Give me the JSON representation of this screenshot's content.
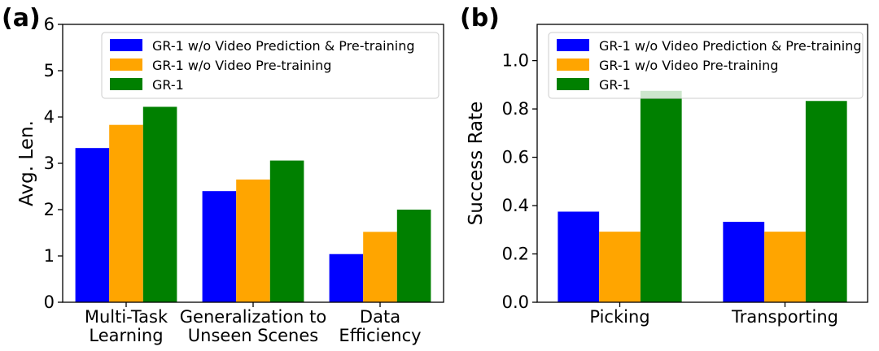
{
  "chart_data": [
    {
      "panel": "(a)",
      "type": "bar",
      "title": "",
      "xlabel": "",
      "ylabel": "Avg. Len.",
      "ylim": [
        0,
        6
      ],
      "yticks": [
        0,
        1,
        2,
        3,
        4,
        5,
        6
      ],
      "ytick_labels": [
        "0",
        "1",
        "2",
        "3",
        "4",
        "5",
        "6"
      ],
      "grid": false,
      "legend_position": "top-right",
      "categories": [
        [
          "Multi-Task",
          "Learning"
        ],
        [
          "Generalization to",
          "Unseen Scenes"
        ],
        [
          "Data",
          "Efficiency"
        ]
      ],
      "series": [
        {
          "name": "GR-1 w/o Video Prediction & Pre-training",
          "color": "#0000ff",
          "values": [
            3.33,
            2.4,
            1.04
          ]
        },
        {
          "name": "GR-1 w/o Video Pre-training",
          "color": "#ffa500",
          "values": [
            3.83,
            2.65,
            1.52
          ]
        },
        {
          "name": "GR-1",
          "color": "#008000",
          "values": [
            4.22,
            3.06,
            2.0
          ]
        }
      ]
    },
    {
      "panel": "(b)",
      "type": "bar",
      "title": "",
      "xlabel": "",
      "ylabel": "Success Rate",
      "ylim": [
        0,
        1.15
      ],
      "yticks": [
        0,
        0.2,
        0.4,
        0.6,
        0.8,
        1.0
      ],
      "ytick_labels": [
        "0.0",
        "0.2",
        "0.4",
        "0.6",
        "0.8",
        "1.0"
      ],
      "grid": false,
      "legend_position": "top-right",
      "categories": [
        [
          "Picking"
        ],
        [
          "Transporting"
        ]
      ],
      "series": [
        {
          "name": "GR-1 w/o Video Prediction & Pre-training",
          "color": "#0000ff",
          "values": [
            0.375,
            0.333
          ]
        },
        {
          "name": "GR-1 w/o Video Pre-training",
          "color": "#ffa500",
          "values": [
            0.292,
            0.292
          ]
        },
        {
          "name": "GR-1",
          "color": "#008000",
          "values": [
            0.875,
            0.833
          ]
        }
      ]
    }
  ]
}
